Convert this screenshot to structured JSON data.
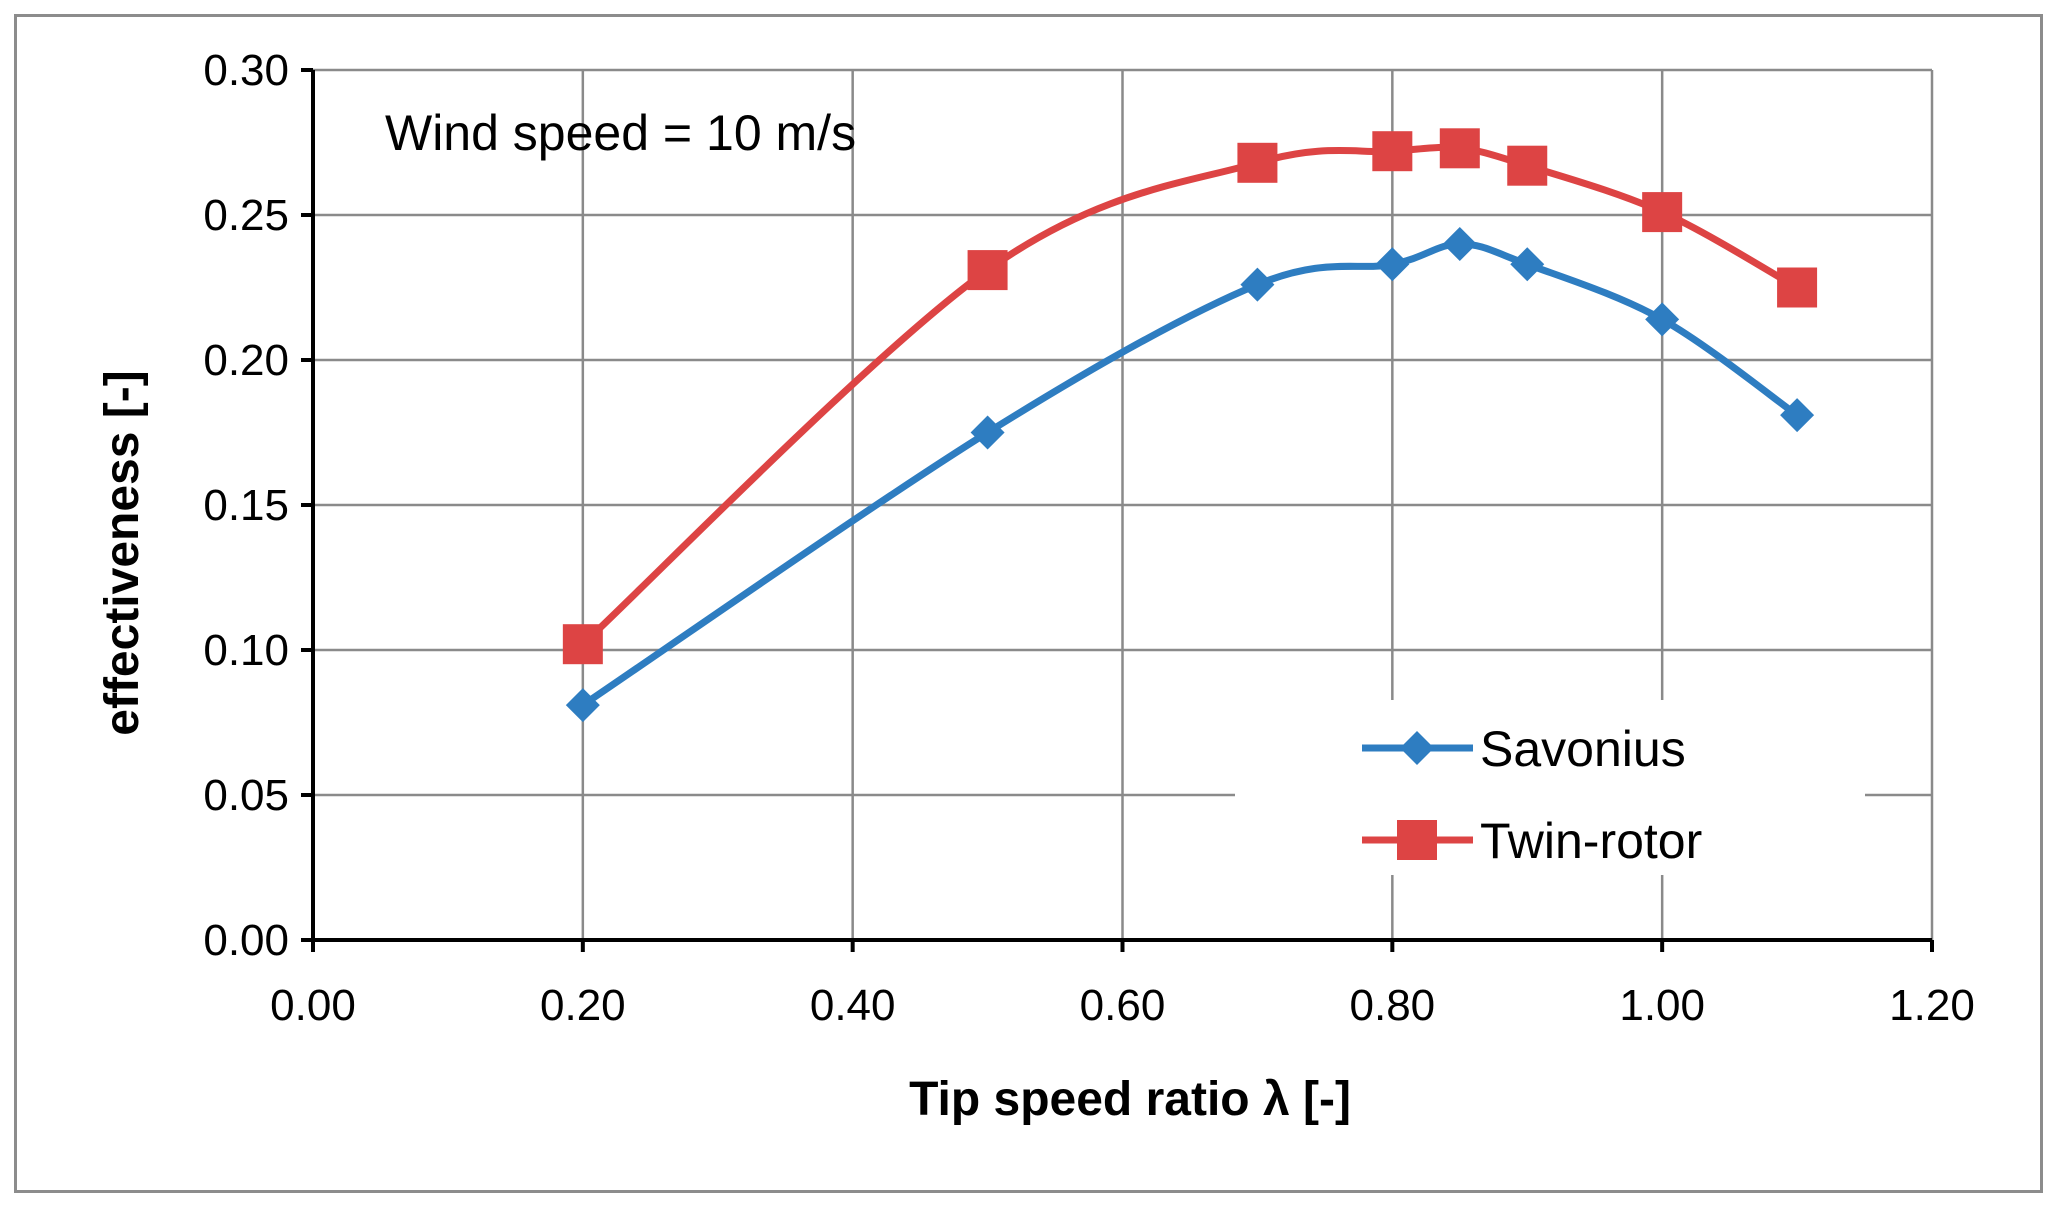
{
  "chart_data": {
    "type": "line",
    "title": "",
    "annotation": "Wind speed = 10 m/s",
    "xlabel": "Tip speed ratio λ [-]",
    "ylabel": "effectiveness  [-]",
    "xlim": [
      0,
      1.2
    ],
    "ylim": [
      0,
      0.3
    ],
    "xticks": [
      "0.00",
      "0.20",
      "0.40",
      "0.60",
      "0.80",
      "1.00",
      "1.20"
    ],
    "yticks": [
      "0.00",
      "0.05",
      "0.10",
      "0.15",
      "0.20",
      "0.25",
      "0.30"
    ],
    "xtick_values": [
      0,
      0.2,
      0.4,
      0.6,
      0.8,
      1.0,
      1.2
    ],
    "ytick_values": [
      0,
      0.05,
      0.1,
      0.15,
      0.2,
      0.25,
      0.3
    ],
    "grid": true,
    "legend_position": "bottom-right",
    "series": [
      {
        "name": "Savonius",
        "color": "#2e7dc1",
        "marker": "diamond",
        "x": [
          0.2,
          0.5,
          0.7,
          0.8,
          0.85,
          0.9,
          1.0,
          1.1
        ],
        "y": [
          0.081,
          0.175,
          0.226,
          0.233,
          0.24,
          0.233,
          0.214,
          0.181
        ]
      },
      {
        "name": "Twin-rotor",
        "color": "#dd4444",
        "marker": "square",
        "x": [
          0.2,
          0.5,
          0.7,
          0.8,
          0.85,
          0.9,
          1.0,
          1.1
        ],
        "y": [
          0.102,
          0.231,
          0.268,
          0.272,
          0.273,
          0.267,
          0.251,
          0.225
        ]
      }
    ]
  }
}
